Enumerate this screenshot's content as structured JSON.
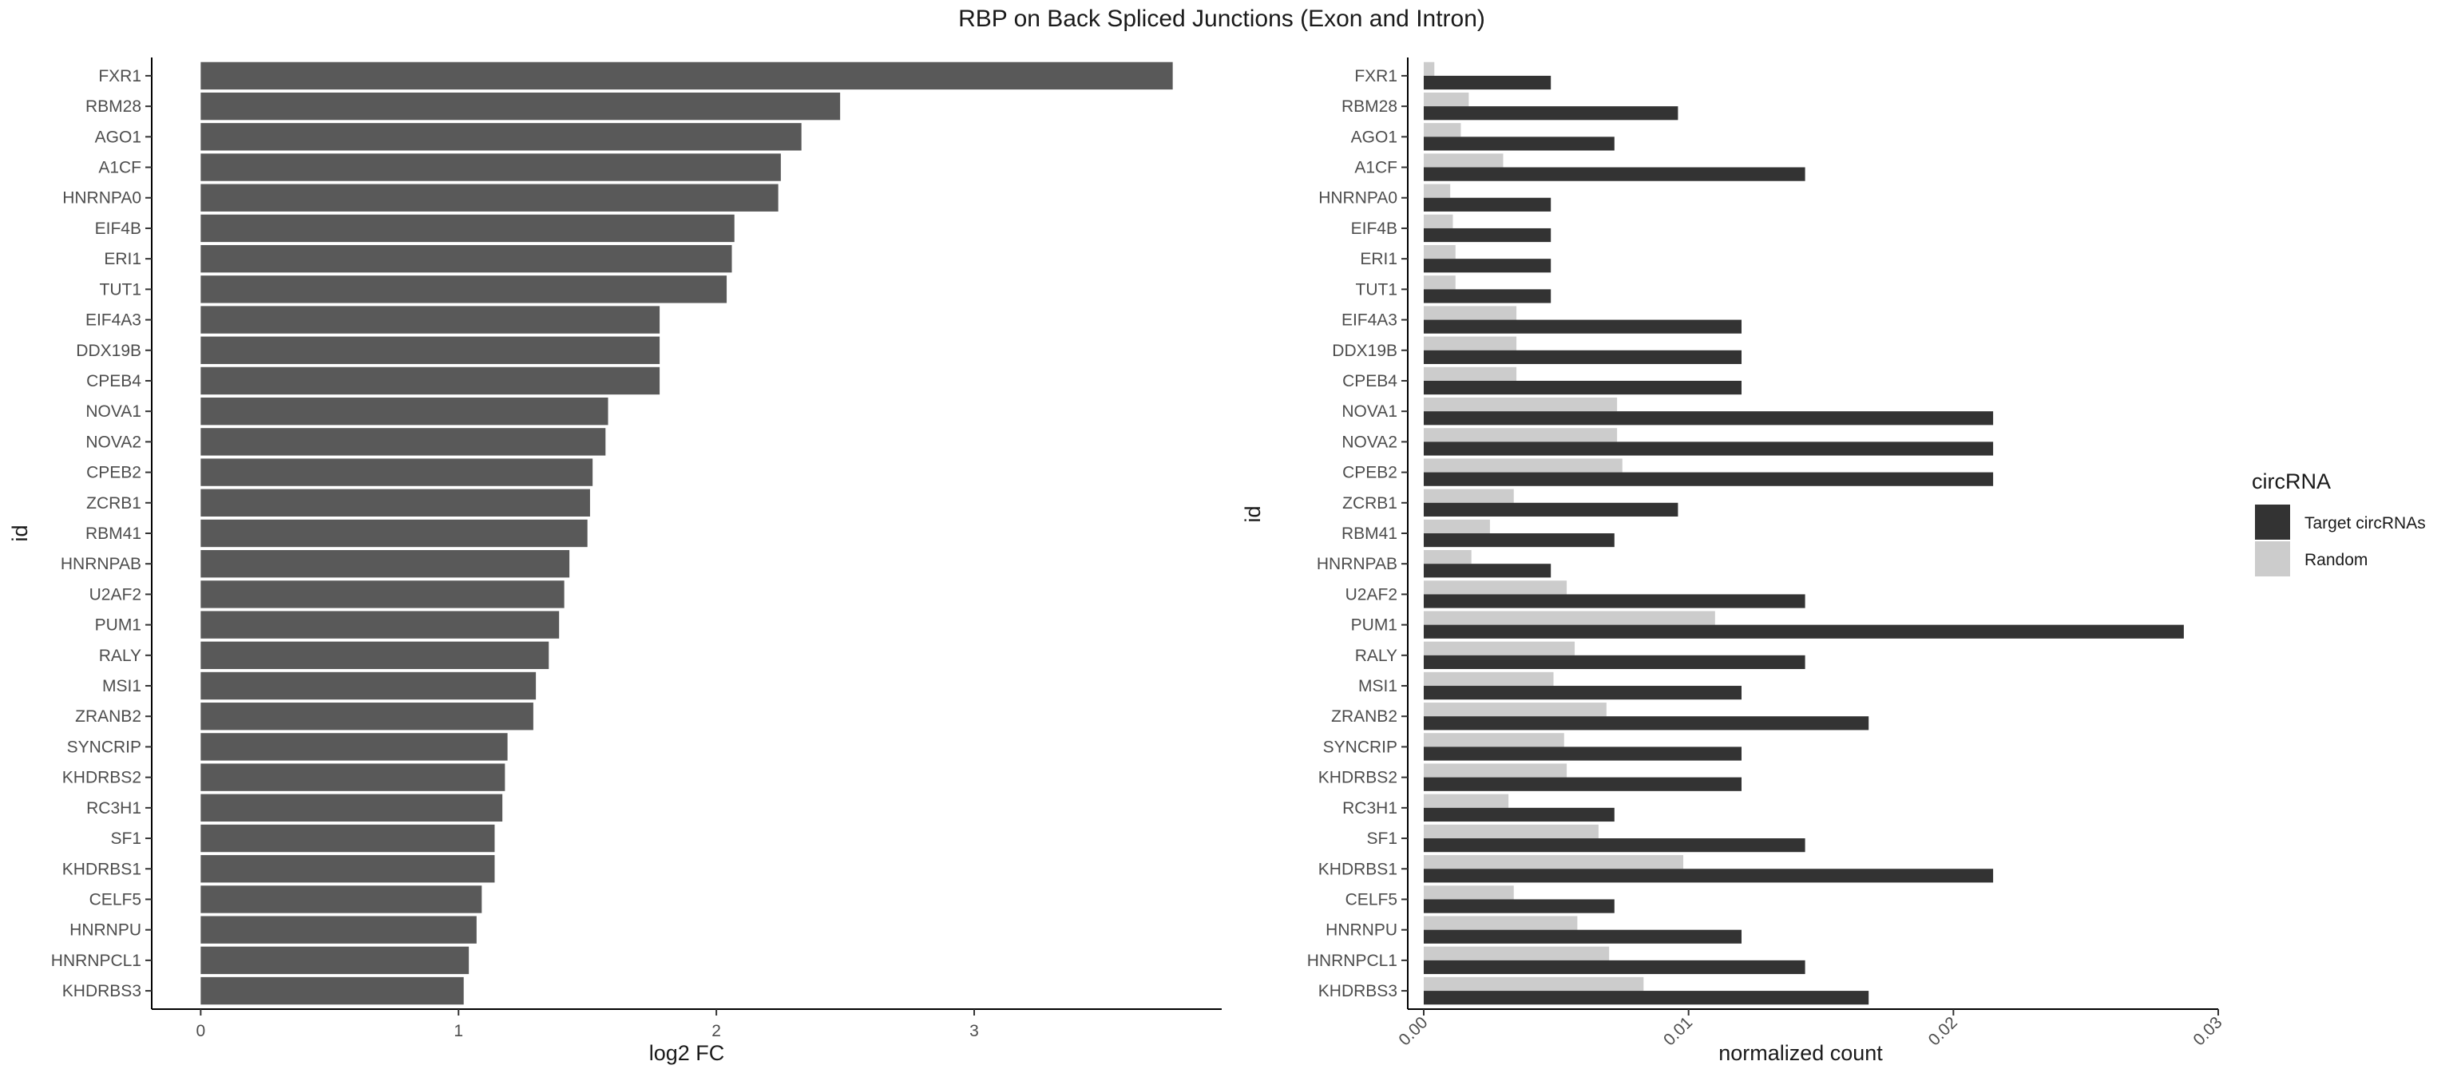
{
  "title": "RBP on Back Spliced Junctions (Exon and Intron)",
  "chart_data": [
    {
      "type": "bar",
      "orientation": "horizontal",
      "categories": [
        "FXR1",
        "RBM28",
        "AGO1",
        "A1CF",
        "HNRNPA0",
        "EIF4B",
        "ERI1",
        "TUT1",
        "EIF4A3",
        "DDX19B",
        "CPEB4",
        "NOVA1",
        "NOVA2",
        "CPEB2",
        "ZCRB1",
        "RBM41",
        "HNRNPAB",
        "U2AF2",
        "PUM1",
        "RALY",
        "MSI1",
        "ZRANB2",
        "SYNCRIP",
        "KHDRBS2",
        "RC3H1",
        "SF1",
        "KHDRBS1",
        "CELF5",
        "HNRNPU",
        "HNRNPCL1",
        "KHDRBS3"
      ],
      "values": [
        3.77,
        2.48,
        2.33,
        2.25,
        2.24,
        2.07,
        2.06,
        2.04,
        1.78,
        1.78,
        1.78,
        1.58,
        1.57,
        1.52,
        1.51,
        1.5,
        1.43,
        1.41,
        1.39,
        1.35,
        1.3,
        1.29,
        1.19,
        1.18,
        1.17,
        1.14,
        1.14,
        1.09,
        1.07,
        1.04,
        1.02
      ],
      "xlabel": "log2 FC",
      "ylabel": "id",
      "xlim": [
        -0.19,
        3.96
      ],
      "xticks": [
        0,
        1,
        2,
        3
      ],
      "grid": false,
      "color": "#595959"
    },
    {
      "type": "bar",
      "orientation": "horizontal",
      "categories": [
        "FXR1",
        "RBM28",
        "AGO1",
        "A1CF",
        "HNRNPA0",
        "EIF4B",
        "ERI1",
        "TUT1",
        "EIF4A3",
        "DDX19B",
        "CPEB4",
        "NOVA1",
        "NOVA2",
        "CPEB2",
        "ZCRB1",
        "RBM41",
        "HNRNPAB",
        "U2AF2",
        "PUM1",
        "RALY",
        "MSI1",
        "ZRANB2",
        "SYNCRIP",
        "KHDRBS2",
        "RC3H1",
        "SF1",
        "KHDRBS1",
        "CELF5",
        "HNRNPU",
        "HNRNPCL1",
        "KHDRBS3"
      ],
      "series": [
        {
          "name": "Target circRNAs",
          "color": "#333333",
          "values": [
            0.0048,
            0.0096,
            0.0072,
            0.0144,
            0.0048,
            0.0048,
            0.0048,
            0.0048,
            0.012,
            0.012,
            0.012,
            0.0215,
            0.0215,
            0.0215,
            0.0096,
            0.0072,
            0.0048,
            0.0144,
            0.0287,
            0.0144,
            0.012,
            0.0168,
            0.012,
            0.012,
            0.0072,
            0.0144,
            0.0215,
            0.0072,
            0.012,
            0.0144,
            0.0168
          ]
        },
        {
          "name": "Random",
          "color": "#cccccc",
          "values": [
            0.0004,
            0.0017,
            0.0014,
            0.003,
            0.001,
            0.0011,
            0.0012,
            0.0012,
            0.0035,
            0.0035,
            0.0035,
            0.0073,
            0.0073,
            0.0075,
            0.0034,
            0.0025,
            0.0018,
            0.0054,
            0.011,
            0.0057,
            0.0049,
            0.0069,
            0.0053,
            0.0054,
            0.0032,
            0.0066,
            0.0098,
            0.0034,
            0.0058,
            0.007,
            0.0083
          ]
        }
      ],
      "xlabel": "normalized count",
      "ylabel": "id",
      "xlim": [
        0,
        0.03
      ],
      "xticks": [
        "0.00",
        "0.01",
        "0.02",
        "0.03"
      ],
      "grid": false,
      "legend": {
        "title": "circRNA",
        "placement": "right"
      }
    }
  ]
}
